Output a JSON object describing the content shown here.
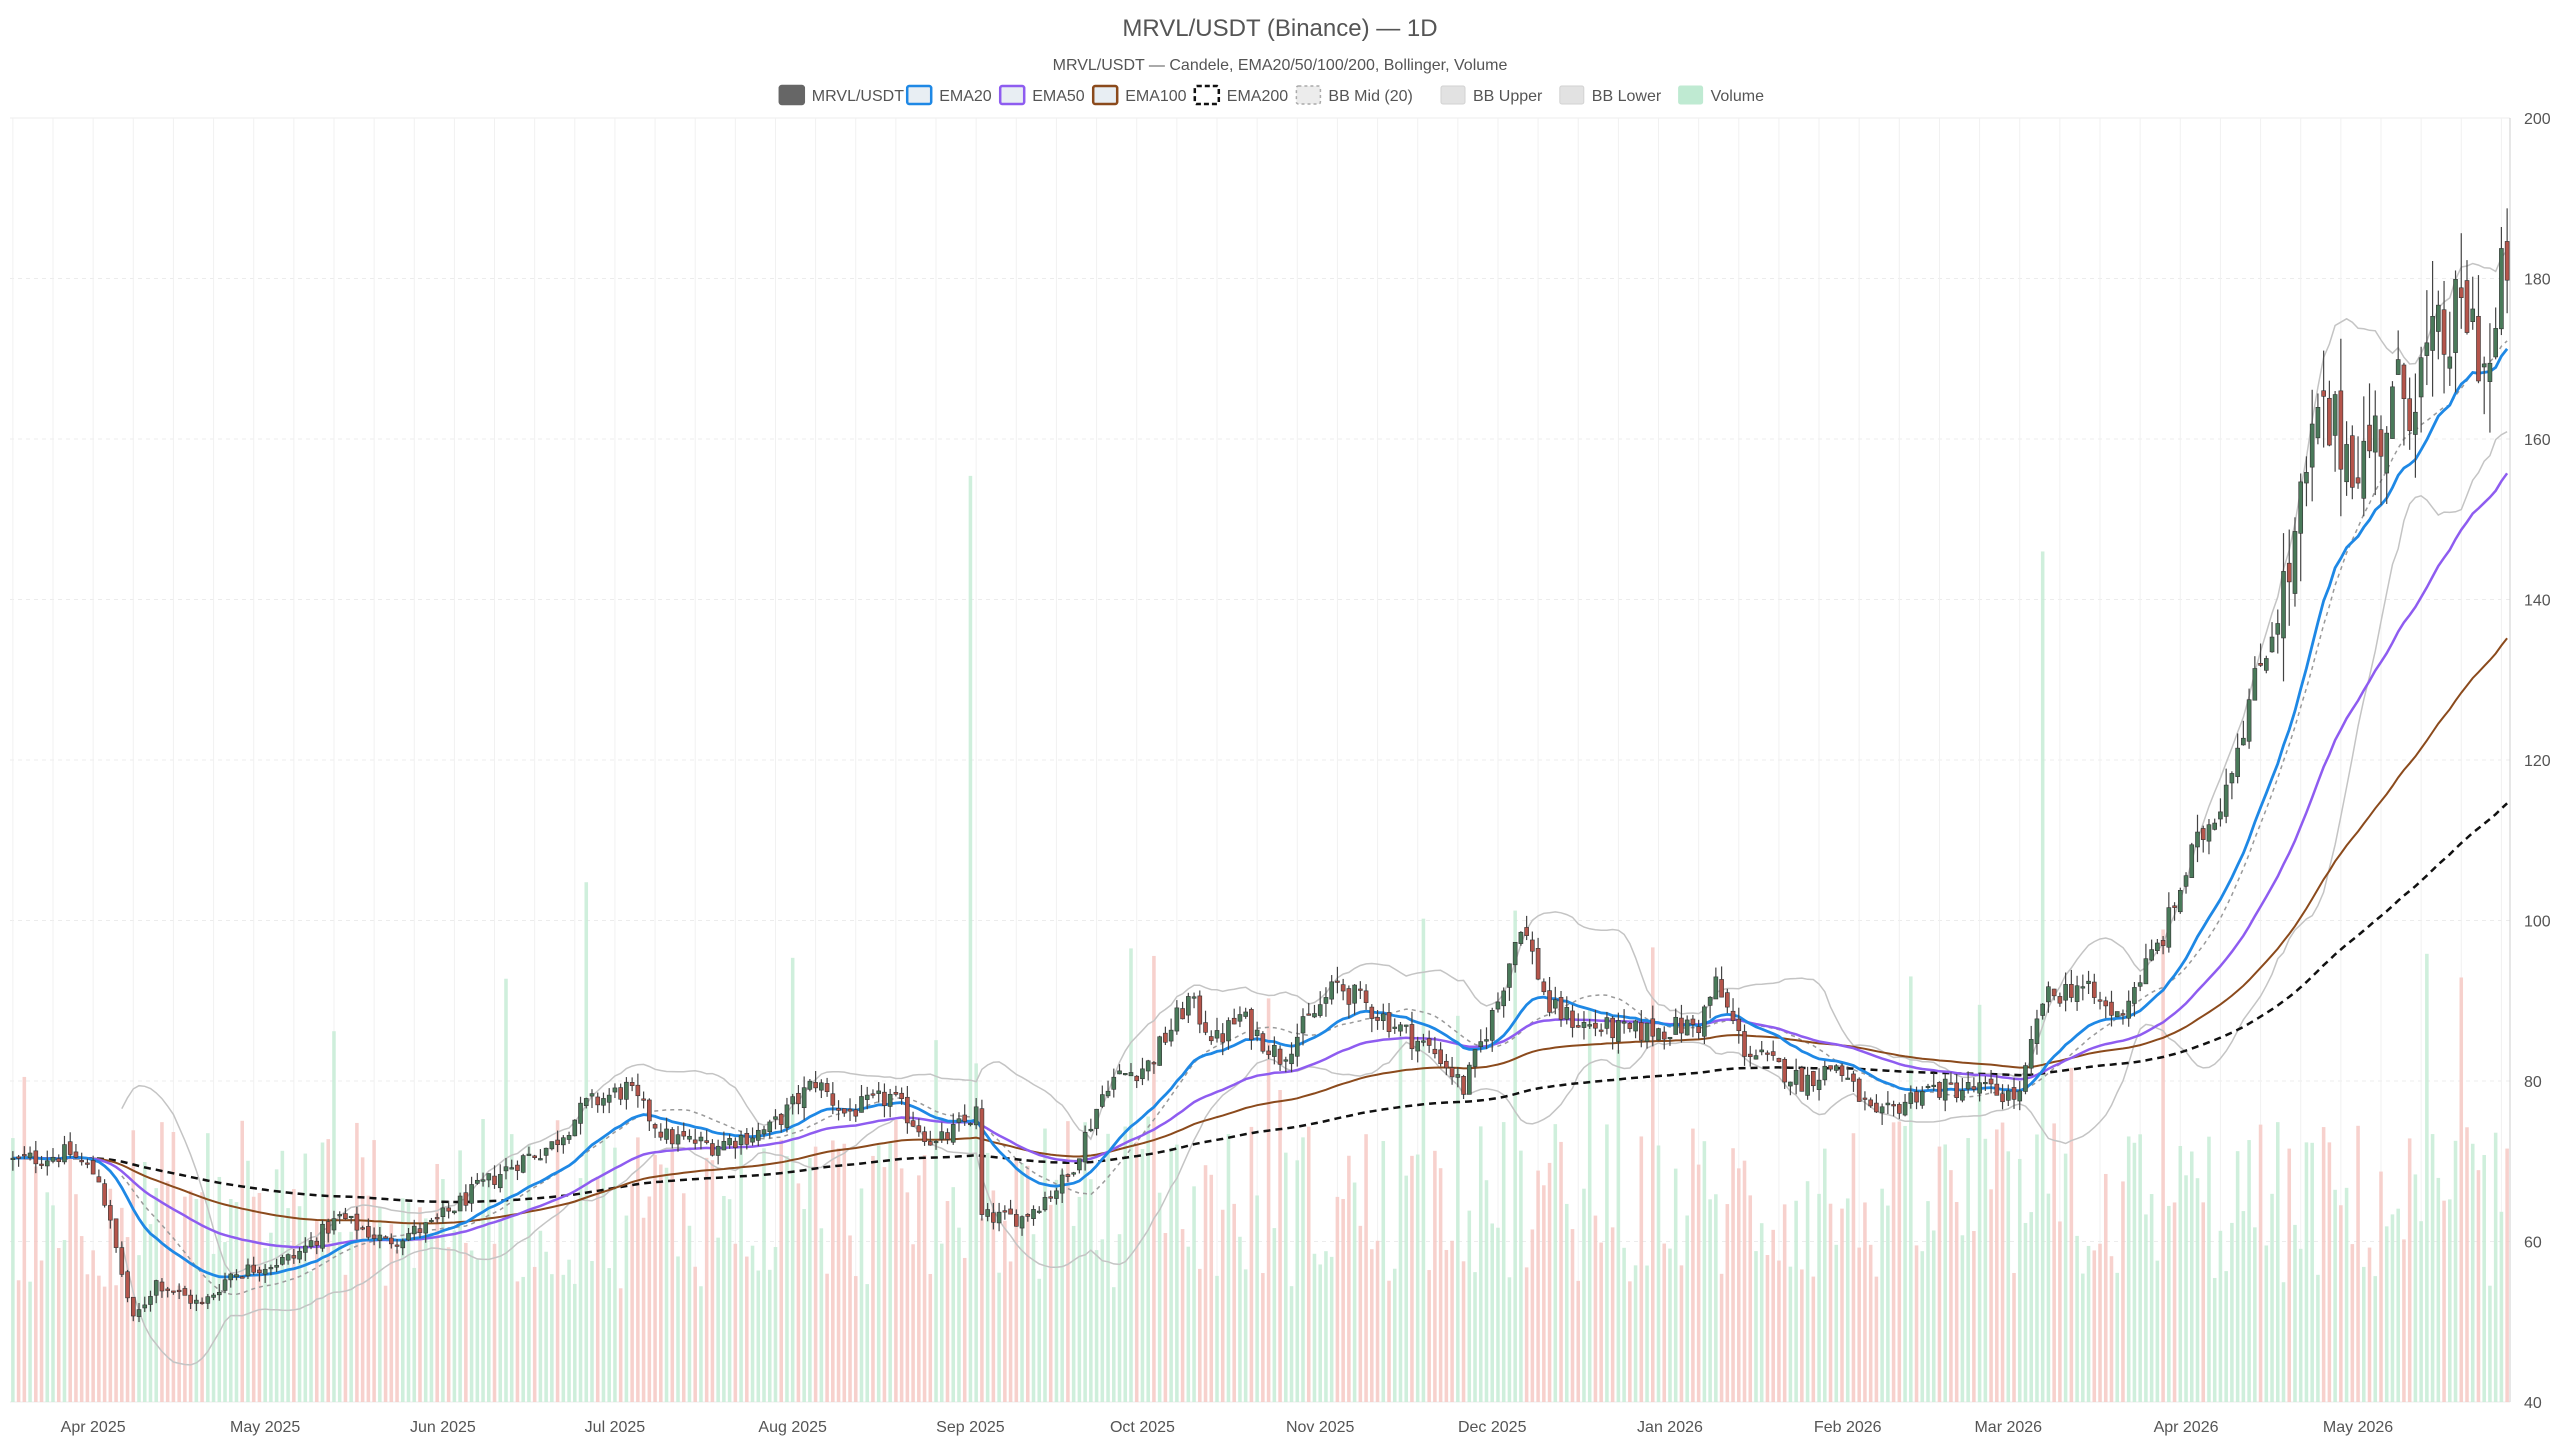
{
  "chart_data": {
    "type": "candlestick",
    "title": "MRVL/USDT (Binance) — 1D",
    "subtitle": "MRVL/USDT — Candele, EMA20/50/100/200, Bollinger, Volume",
    "xlabel": "",
    "ylabel": "",
    "x_range": [
      "2025-03-18",
      "2026-05-27"
    ],
    "ylim": [
      40,
      200
    ],
    "y_ticks": [
      40,
      60,
      80,
      100,
      120,
      140,
      160,
      180,
      200
    ],
    "y_axis_side": "right",
    "x_ticks": [
      {
        "label": "Apr 2025",
        "date": "2025-04-01"
      },
      {
        "label": "May 2025",
        "date": "2025-05-01"
      },
      {
        "label": "Jun 2025",
        "date": "2025-06-01"
      },
      {
        "label": "Jul 2025",
        "date": "2025-07-01"
      },
      {
        "label": "Aug 2025",
        "date": "2025-08-01"
      },
      {
        "label": "Sep 2025",
        "date": "2025-09-01"
      },
      {
        "label": "Oct 2025",
        "date": "2025-10-01"
      },
      {
        "label": "Nov 2025",
        "date": "2025-11-01"
      },
      {
        "label": "Dec 2025",
        "date": "2025-12-01"
      },
      {
        "label": "Jan 2026",
        "date": "2026-01-01"
      },
      {
        "label": "Feb 2026",
        "date": "2026-02-01"
      },
      {
        "label": "Mar 2026",
        "date": "2026-03-01"
      },
      {
        "label": "Apr 2026",
        "date": "2026-04-01"
      },
      {
        "label": "May 2026",
        "date": "2026-05-01"
      }
    ],
    "grid": true,
    "legend_position": "top-center",
    "legend": [
      {
        "label": "MRVL/USDT",
        "swatch": "solid",
        "color": "#666666"
      },
      {
        "label": "EMA20",
        "swatch": "outline",
        "color": "#1e88e5"
      },
      {
        "label": "EMA50",
        "swatch": "outline",
        "color": "#8e5cf0"
      },
      {
        "label": "EMA100",
        "swatch": "outline",
        "color": "#8b4a1c"
      },
      {
        "label": "EMA200",
        "swatch": "dashed",
        "color": "#111111"
      },
      {
        "label": "BB Mid (20)",
        "swatch": "dotted",
        "color": "#aaaaaa"
      },
      {
        "label": "BB Upper",
        "swatch": "light",
        "color": "#c8c8c8"
      },
      {
        "label": "BB Lower",
        "swatch": "light",
        "color": "#c8c8c8"
      },
      {
        "label": "Volume",
        "swatch": "volume",
        "color": "#bfead2"
      }
    ],
    "colors": {
      "up": "#4a7a5a",
      "down": "#b5554b",
      "wick": "#444444",
      "vol_up": "#c7ecd6",
      "vol_down": "#f6c9c4",
      "ema20": "#1e88e5",
      "ema50": "#8e5cf0",
      "ema100": "#8b4a1c",
      "ema200": "#111111",
      "bb": "#c4c4c4",
      "bb_mid": "#9a9a9a",
      "grid": "#ececec"
    },
    "price_keyframes": [
      [
        "2025-03-18",
        70
      ],
      [
        "2025-03-28",
        71
      ],
      [
        "2025-04-02",
        68
      ],
      [
        "2025-04-08",
        50
      ],
      [
        "2025-04-12",
        55
      ],
      [
        "2025-04-20",
        52
      ],
      [
        "2025-04-25",
        56
      ],
      [
        "2025-05-06",
        58
      ],
      [
        "2025-05-14",
        63
      ],
      [
        "2025-05-22",
        60
      ],
      [
        "2025-05-30",
        62
      ],
      [
        "2025-06-06",
        66
      ],
      [
        "2025-06-14",
        70
      ],
      [
        "2025-06-20",
        72
      ],
      [
        "2025-06-26",
        77
      ],
      [
        "2025-07-03",
        79
      ],
      [
        "2025-07-10",
        73
      ],
      [
        "2025-07-18",
        72
      ],
      [
        "2025-07-28",
        74
      ],
      [
        "2025-08-05",
        80
      ],
      [
        "2025-08-10",
        76
      ],
      [
        "2025-08-18",
        78
      ],
      [
        "2025-08-26",
        72
      ],
      [
        "2025-09-02",
        76
      ],
      [
        "2025-09-03",
        63
      ],
      [
        "2025-09-10",
        63
      ],
      [
        "2025-09-18",
        68
      ],
      [
        "2025-09-25",
        80
      ],
      [
        "2025-10-02",
        82
      ],
      [
        "2025-10-09",
        90
      ],
      [
        "2025-10-14",
        85
      ],
      [
        "2025-10-18",
        88
      ],
      [
        "2025-10-25",
        83
      ],
      [
        "2025-11-04",
        92
      ],
      [
        "2025-11-12",
        88
      ],
      [
        "2025-11-22",
        83
      ],
      [
        "2025-11-26",
        79
      ],
      [
        "2025-12-02",
        90
      ],
      [
        "2025-12-06",
        100
      ],
      [
        "2025-12-11",
        89
      ],
      [
        "2025-12-17",
        87
      ],
      [
        "2025-12-25",
        86
      ],
      [
        "2026-01-06",
        87
      ],
      [
        "2026-01-09",
        92
      ],
      [
        "2026-01-14",
        84
      ],
      [
        "2026-01-24",
        80
      ],
      [
        "2026-01-30",
        82
      ],
      [
        "2026-02-06",
        75
      ],
      [
        "2026-02-14",
        79
      ],
      [
        "2026-02-24",
        79
      ],
      [
        "2026-03-03",
        78
      ],
      [
        "2026-03-07",
        90
      ],
      [
        "2026-03-13",
        92
      ],
      [
        "2026-03-20",
        88
      ],
      [
        "2026-03-28",
        98
      ],
      [
        "2026-04-02",
        108
      ],
      [
        "2026-04-07",
        115
      ],
      [
        "2026-04-14",
        132
      ],
      [
        "2026-04-19",
        143
      ],
      [
        "2026-04-24",
        162
      ],
      [
        "2026-05-02",
        158
      ],
      [
        "2026-05-08",
        165
      ],
      [
        "2026-05-14",
        170
      ],
      [
        "2026-05-20",
        176
      ],
      [
        "2026-05-24",
        168
      ],
      [
        "2026-05-27",
        183
      ]
    ],
    "volume_notes": "Volume bars at bottom, scaled to lower ~60% of plot; peaks near Sep 1 2025 and Mar 7 2026."
  }
}
